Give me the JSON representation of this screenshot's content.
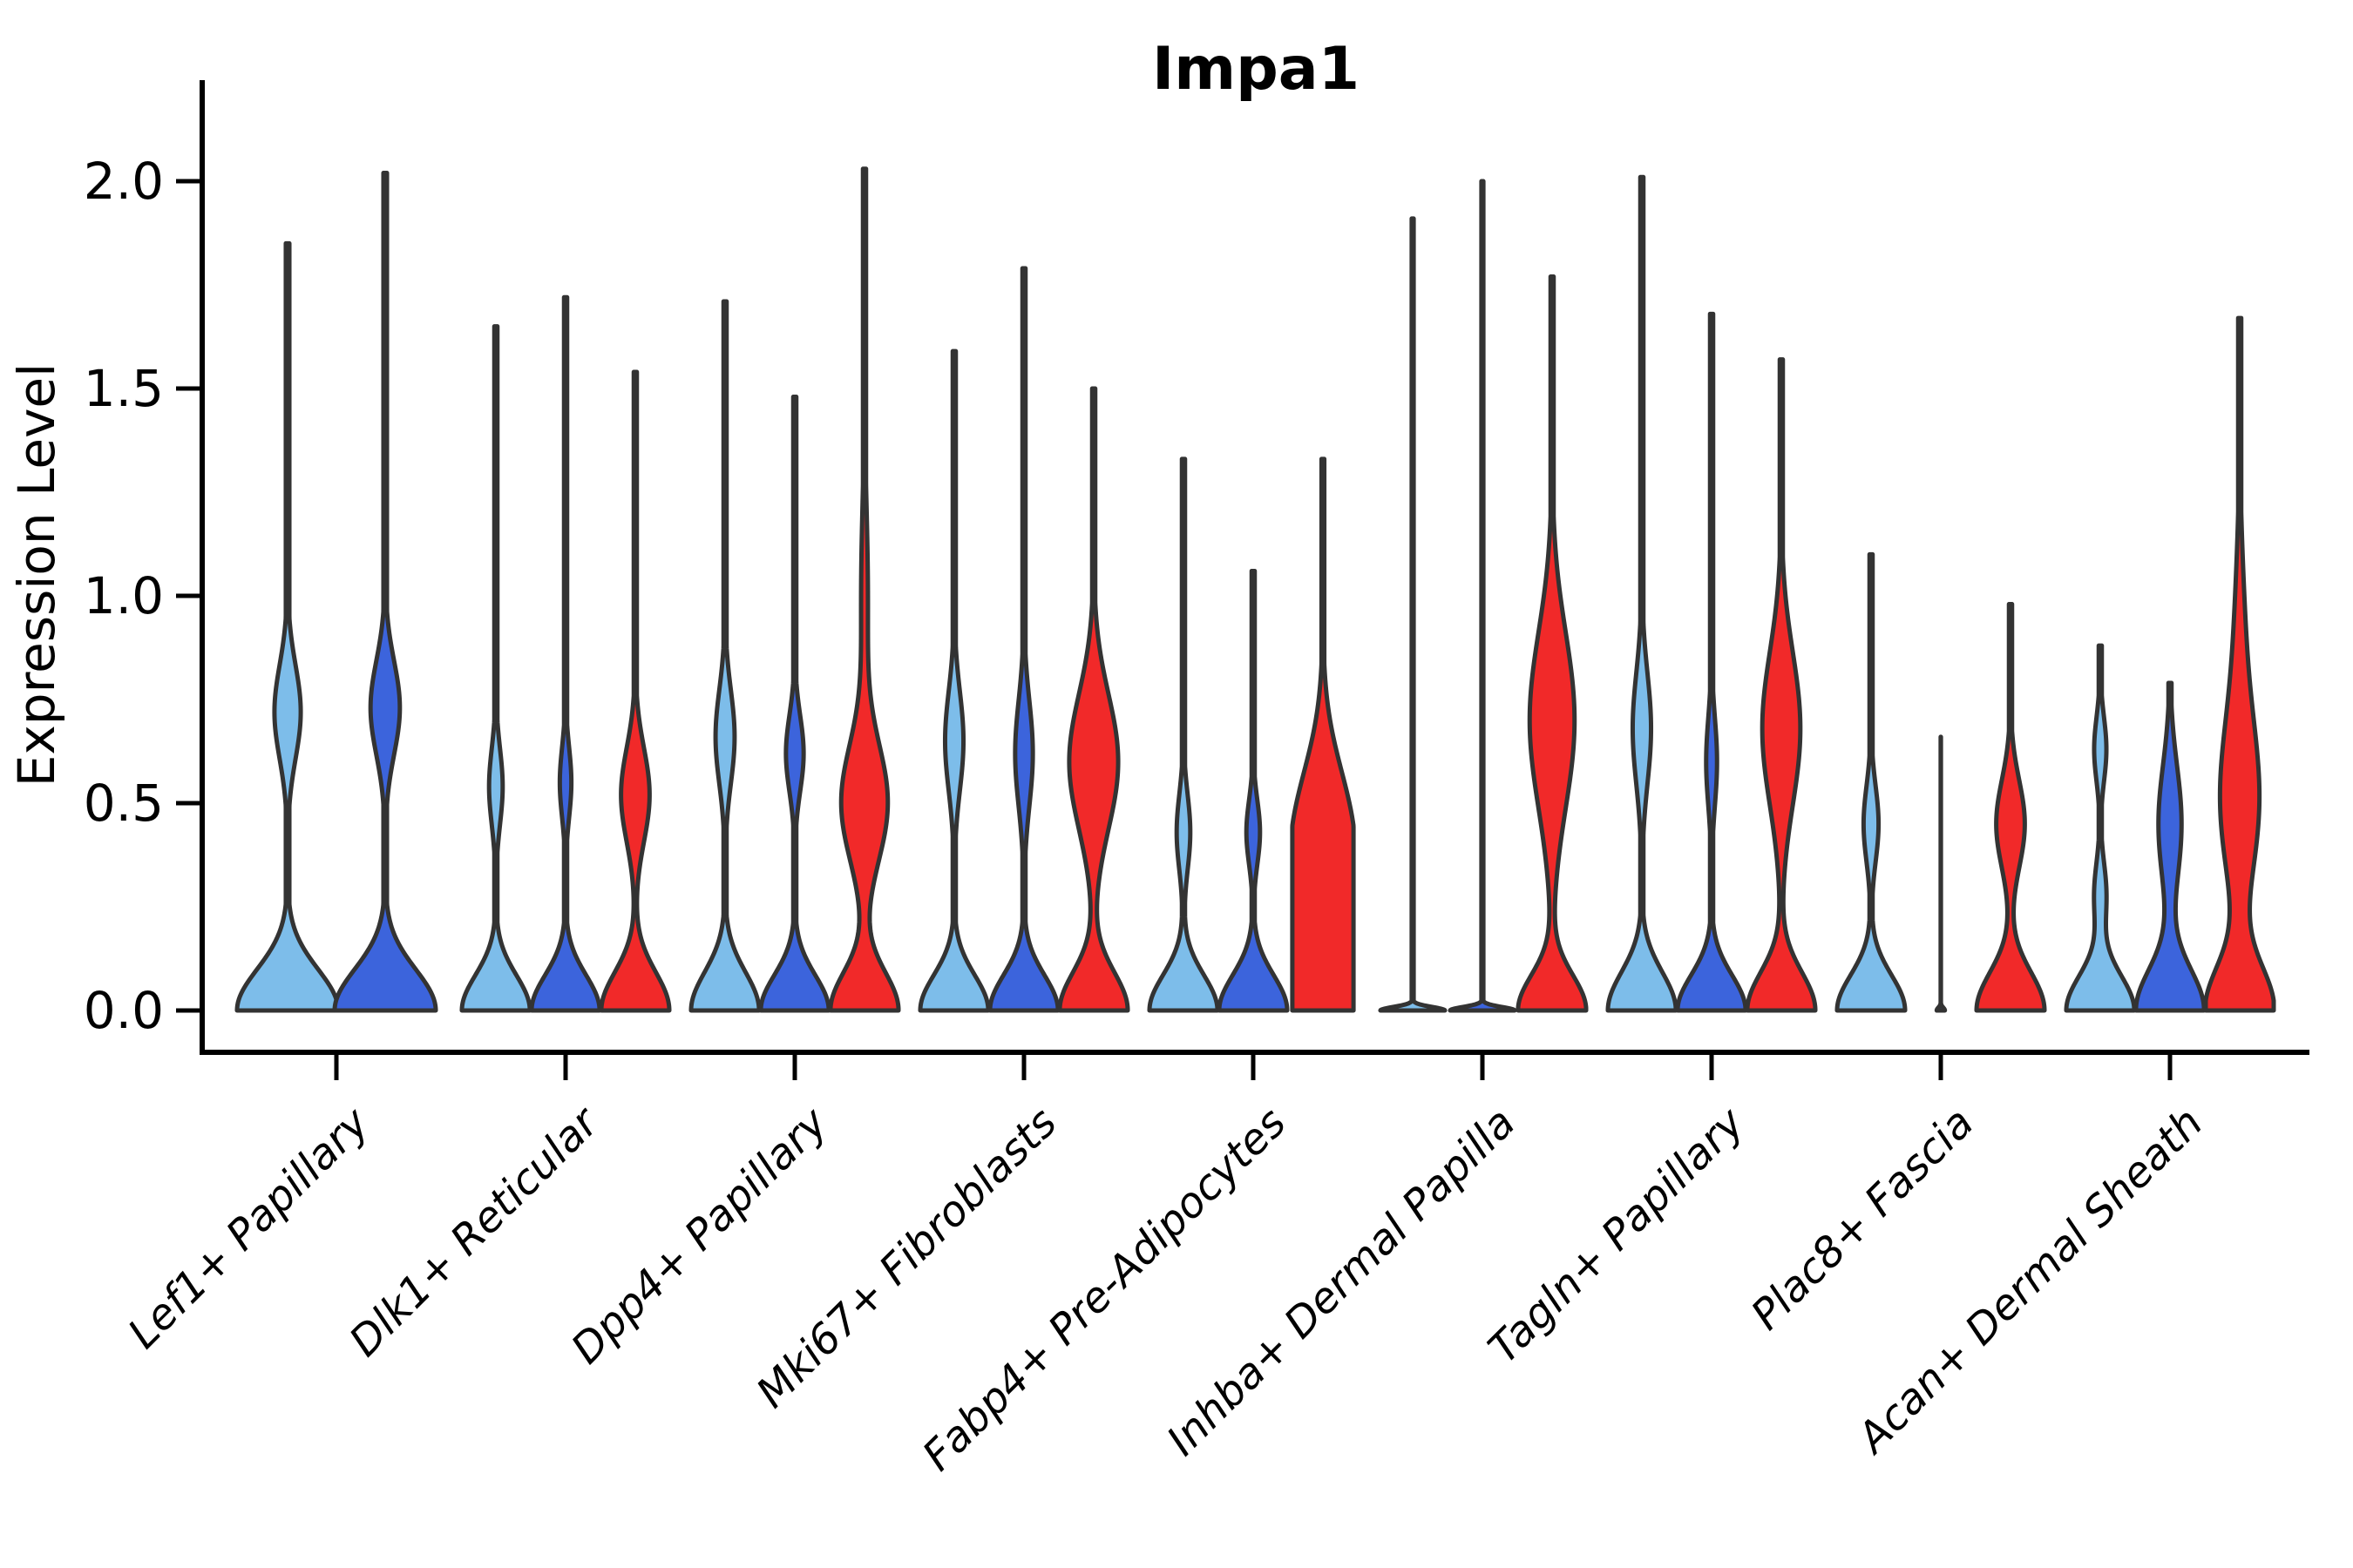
{
  "title": "Impa1",
  "ylabel": "Expression Level",
  "yticks": [
    "0.0",
    "0.5",
    "1.0",
    "1.5",
    "2.0"
  ],
  "colors": {
    "light_blue": "#7DBDEA",
    "dark_blue": "#3C64DC",
    "red": "#F12929",
    "violin_outline": "#333333",
    "axis": "#000000"
  },
  "chart_data": {
    "type": "violin",
    "title": "Impa1",
    "xlabel": "",
    "ylabel": "Expression Level",
    "ylim": [
      0,
      2.24
    ],
    "ytick_values": [
      0.0,
      0.5,
      1.0,
      1.5,
      2.0
    ],
    "grid": false,
    "legend": "none",
    "series_colors": [
      "#7DBDEA",
      "#3C64DC",
      "#F12929"
    ],
    "categories": [
      "Lef1+ Papillary",
      "Dlk1+ Reticular",
      "Dpp4+ Papillary",
      "Mki67+ Fibroblasts",
      "Fabp4+ Pre-Adipocytes",
      "Inhba+ Dermal Papilla",
      "Tagln+ Papillary",
      "Plac8+ Fascia",
      "Acan+ Dermal Sheath"
    ],
    "groups": [
      {
        "category": "Lef1+ Papillary",
        "violins": [
          {
            "series": 0,
            "max": 1.85,
            "bs": 0.14,
            "stem": 0.035,
            "bulges": [
              {
                "c": 0.72,
                "a": 0.26,
                "s": 0.16
              }
            ]
          },
          {
            "series": 1,
            "max": 2.02,
            "bs": 0.14,
            "stem": 0.035,
            "bulges": [
              {
                "c": 0.73,
                "a": 0.29,
                "s": 0.16
              }
            ]
          }
        ]
      },
      {
        "category": "Dlk1+ Reticular",
        "violins": [
          {
            "series": 0,
            "max": 1.65,
            "bs": 0.12,
            "stem": 0.045,
            "bulges": [
              {
                "c": 0.54,
                "a": 0.2,
                "s": 0.13
              }
            ]
          },
          {
            "series": 1,
            "max": 1.72,
            "bs": 0.12,
            "stem": 0.045,
            "bulges": [
              {
                "c": 0.55,
                "a": 0.17,
                "s": 0.12
              }
            ]
          },
          {
            "series": 2,
            "max": 1.54,
            "bs": 0.13,
            "stem": 0.045,
            "bulges": [
              {
                "c": 0.52,
                "a": 0.42,
                "s": 0.16
              }
            ]
          }
        ]
      },
      {
        "category": "Dpp4+ Papillary",
        "violins": [
          {
            "series": 0,
            "max": 1.71,
            "bs": 0.13,
            "stem": 0.045,
            "bulges": [
              {
                "c": 0.66,
                "a": 0.28,
                "s": 0.16
              }
            ]
          },
          {
            "series": 1,
            "max": 1.48,
            "bs": 0.12,
            "stem": 0.045,
            "bulges": [
              {
                "c": 0.62,
                "a": 0.26,
                "s": 0.13
              }
            ]
          },
          {
            "series": 2,
            "max": 2.03,
            "bs": 0.13,
            "stem": 0.045,
            "bulges": [
              {
                "c": 0.5,
                "a": 0.68,
                "s": 0.2
              },
              {
                "c": 1.0,
                "a": 0.1,
                "s": 0.3
              }
            ]
          }
        ]
      },
      {
        "category": "Mki67+ Fibroblasts",
        "violins": [
          {
            "series": 0,
            "max": 1.59,
            "bs": 0.12,
            "stem": 0.045,
            "bulges": [
              {
                "c": 0.65,
                "a": 0.27,
                "s": 0.17
              }
            ]
          },
          {
            "series": 1,
            "max": 1.79,
            "bs": 0.12,
            "stem": 0.045,
            "bulges": [
              {
                "c": 0.62,
                "a": 0.26,
                "s": 0.18
              }
            ]
          },
          {
            "series": 2,
            "max": 1.5,
            "bs": 0.13,
            "stem": 0.045,
            "bulges": [
              {
                "c": 0.6,
                "a": 0.72,
                "s": 0.23
              }
            ]
          }
        ]
      },
      {
        "category": "Fabp4+ Pre-Adipocytes",
        "violins": [
          {
            "series": 0,
            "max": 1.33,
            "bs": 0.12,
            "stem": 0.045,
            "bulges": [
              {
                "c": 0.43,
                "a": 0.2,
                "s": 0.13
              }
            ]
          },
          {
            "series": 1,
            "max": 1.06,
            "bs": 0.12,
            "stem": 0.045,
            "bulges": [
              {
                "c": 0.43,
                "a": 0.2,
                "s": 0.11
              }
            ]
          },
          {
            "series": 2,
            "max": 1.33,
            "bs": 0.3,
            "stem": 0.045,
            "hwf": 0.9,
            "bulges": [
              {
                "c": 0.42,
                "a": 0.9,
                "s": 0.24
              }
            ]
          }
        ]
      },
      {
        "category": "Inhba+ Dermal Papilla",
        "violins": [
          {
            "series": 0,
            "max": 1.91,
            "bs": 0.012,
            "stem": 0.03,
            "hwf": 0.95,
            "bulges": [
              {
                "c": 0.7,
                "a": 0.03,
                "s": 0.25
              }
            ]
          },
          {
            "series": 1,
            "max": 2.0,
            "bs": 0.012,
            "stem": 0.03,
            "hwf": 0.95,
            "bulges": [
              {
                "c": 0.7,
                "a": 0.03,
                "s": 0.25
              }
            ]
          },
          {
            "series": 2,
            "max": 1.77,
            "bs": 0.12,
            "stem": 0.045,
            "bulges": [
              {
                "c": 0.7,
                "a": 0.66,
                "s": 0.3
              }
            ]
          }
        ]
      },
      {
        "category": "Tagln+ Papillary",
        "violins": [
          {
            "series": 0,
            "max": 2.01,
            "bs": 0.13,
            "stem": 0.045,
            "bulges": [
              {
                "c": 0.68,
                "a": 0.27,
                "s": 0.19
              }
            ]
          },
          {
            "series": 1,
            "max": 1.68,
            "bs": 0.12,
            "stem": 0.045,
            "bulges": [
              {
                "c": 0.6,
                "a": 0.16,
                "s": 0.15
              }
            ]
          },
          {
            "series": 2,
            "max": 1.57,
            "bs": 0.13,
            "stem": 0.045,
            "bulges": [
              {
                "c": 0.68,
                "a": 0.56,
                "s": 0.26
              }
            ]
          }
        ]
      },
      {
        "category": "Plac8+ Fascia",
        "violins": [
          {
            "series": 0,
            "max": 1.1,
            "bs": 0.12,
            "stem": 0.045,
            "bulges": [
              {
                "c": 0.45,
                "a": 0.22,
                "s": 0.13
              }
            ]
          },
          {
            "series": 1,
            "max": 0.66,
            "bs": 0.01,
            "stem": 0.03,
            "hwf": 0.12,
            "bulges": []
          },
          {
            "series": 2,
            "max": 0.98,
            "bs": 0.13,
            "stem": 0.045,
            "bulges": [
              {
                "c": 0.45,
                "a": 0.42,
                "s": 0.15
              }
            ]
          }
        ]
      },
      {
        "category": "Acan+ Dermal Sheath",
        "violins": [
          {
            "series": 0,
            "max": 0.88,
            "bs": 0.12,
            "stem": 0.045,
            "bulges": [
              {
                "c": 0.63,
                "a": 0.18,
                "s": 0.11
              },
              {
                "c": 0.28,
                "a": 0.18,
                "s": 0.11
              }
            ]
          },
          {
            "series": 1,
            "max": 0.79,
            "bs": 0.14,
            "stem": 0.045,
            "bulges": [
              {
                "c": 0.45,
                "a": 0.34,
                "s": 0.2
              }
            ]
          },
          {
            "series": 2,
            "max": 1.67,
            "bs": 0.15,
            "stem": 0.045,
            "bulges": [
              {
                "c": 0.5,
                "a": 0.55,
                "s": 0.27
              },
              {
                "c": 0.88,
                "a": 0.14,
                "s": 0.3
              }
            ]
          }
        ]
      }
    ]
  }
}
